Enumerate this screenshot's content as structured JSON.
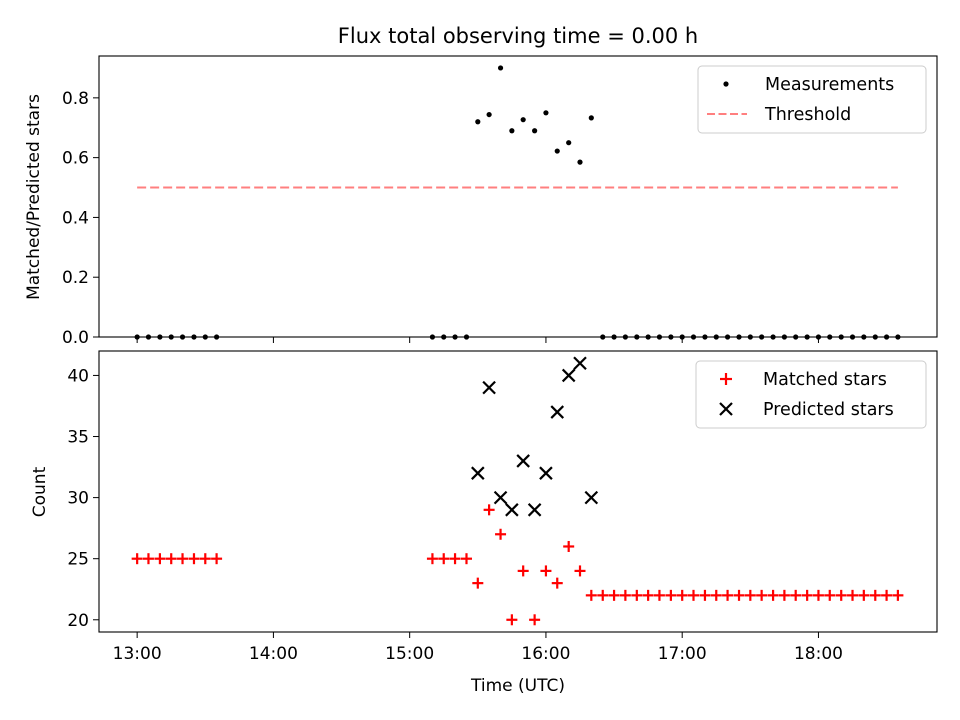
{
  "chart_data": [
    {
      "type": "scatter",
      "title": "Flux total observing time = 0.00 h",
      "xlabel": "",
      "ylabel": "Matched/Predicted stars",
      "ylim": [
        0.0,
        0.94
      ],
      "yticks": [
        0.0,
        0.2,
        0.4,
        0.6,
        0.8
      ],
      "ytick_labels": [
        "0.0",
        "0.2",
        "0.4",
        "0.6",
        "0.8"
      ],
      "xlim_hours": [
        12.72,
        18.87
      ],
      "legend": {
        "placement": "top-right",
        "entries": [
          "Measurements",
          "Threshold"
        ]
      },
      "series": [
        {
          "name": "Measurements",
          "marker": "dot",
          "color": "#000000",
          "x": [
            13.0,
            13.083,
            13.167,
            13.25,
            13.333,
            13.417,
            13.5,
            13.583,
            15.167,
            15.25,
            15.333,
            15.417,
            15.5,
            15.583,
            15.667,
            15.75,
            15.833,
            15.917,
            16.0,
            16.083,
            16.167,
            16.25,
            16.333,
            16.417,
            16.5,
            16.583,
            16.667,
            16.75,
            16.833,
            16.917,
            17.0,
            17.083,
            17.167,
            17.25,
            17.333,
            17.417,
            17.5,
            17.583,
            17.667,
            17.75,
            17.833,
            17.917,
            18.0,
            18.083,
            18.167,
            18.25,
            18.333,
            18.417,
            18.5,
            18.583
          ],
          "y": [
            0,
            0,
            0,
            0,
            0,
            0,
            0,
            0,
            0,
            0,
            0,
            0,
            0.72,
            0.744,
            0.9,
            0.69,
            0.727,
            0.69,
            0.75,
            0.622,
            0.65,
            0.585,
            0.733,
            0,
            0,
            0,
            0,
            0,
            0,
            0,
            0,
            0,
            0,
            0,
            0,
            0,
            0,
            0,
            0,
            0,
            0,
            0,
            0,
            0,
            0,
            0,
            0,
            0,
            0,
            0
          ]
        },
        {
          "name": "Threshold",
          "style": "dashed",
          "color": "#ff7f7f",
          "x": [
            13.0,
            18.583
          ],
          "y": [
            0.5,
            0.5
          ]
        }
      ]
    },
    {
      "type": "scatter",
      "title": "",
      "xlabel": "Time (UTC)",
      "ylabel": "Count",
      "ylim": [
        19.0,
        42.0
      ],
      "yticks": [
        20,
        25,
        30,
        35,
        40
      ],
      "ytick_labels": [
        "20",
        "25",
        "30",
        "35",
        "40"
      ],
      "xlim_hours": [
        12.72,
        18.87
      ],
      "xticks": [
        13,
        14,
        15,
        16,
        17,
        18
      ],
      "xtick_labels": [
        "13:00",
        "14:00",
        "15:00",
        "16:00",
        "17:00",
        "18:00"
      ],
      "legend": {
        "placement": "top-right",
        "entries": [
          "Matched stars",
          "Predicted stars"
        ]
      },
      "series": [
        {
          "name": "Matched stars",
          "marker": "plus",
          "color": "#ff0000",
          "x": [
            13.0,
            13.083,
            13.167,
            13.25,
            13.333,
            13.417,
            13.5,
            13.583,
            15.167,
            15.25,
            15.333,
            15.417,
            15.5,
            15.583,
            15.667,
            15.75,
            15.833,
            15.917,
            16.0,
            16.083,
            16.167,
            16.25,
            16.333,
            16.417,
            16.5,
            16.583,
            16.667,
            16.75,
            16.833,
            16.917,
            17.0,
            17.083,
            17.167,
            17.25,
            17.333,
            17.417,
            17.5,
            17.583,
            17.667,
            17.75,
            17.833,
            17.917,
            18.0,
            18.083,
            18.167,
            18.25,
            18.333,
            18.417,
            18.5,
            18.583
          ],
          "y": [
            25,
            25,
            25,
            25,
            25,
            25,
            25,
            25,
            25,
            25,
            25,
            25,
            23,
            29,
            27,
            20,
            24,
            20,
            24,
            23,
            26,
            24,
            22,
            22,
            22,
            22,
            22,
            22,
            22,
            22,
            22,
            22,
            22,
            22,
            22,
            22,
            22,
            22,
            22,
            22,
            22,
            22,
            22,
            22,
            22,
            22,
            22,
            22,
            22,
            22
          ]
        },
        {
          "name": "Predicted stars",
          "marker": "x",
          "color": "#000000",
          "x": [
            15.5,
            15.583,
            15.667,
            15.75,
            15.833,
            15.917,
            16.0,
            16.083,
            16.167,
            16.25,
            16.333
          ],
          "y": [
            32,
            39,
            30,
            29,
            33,
            29,
            32,
            37,
            40,
            41,
            30
          ]
        }
      ]
    }
  ]
}
